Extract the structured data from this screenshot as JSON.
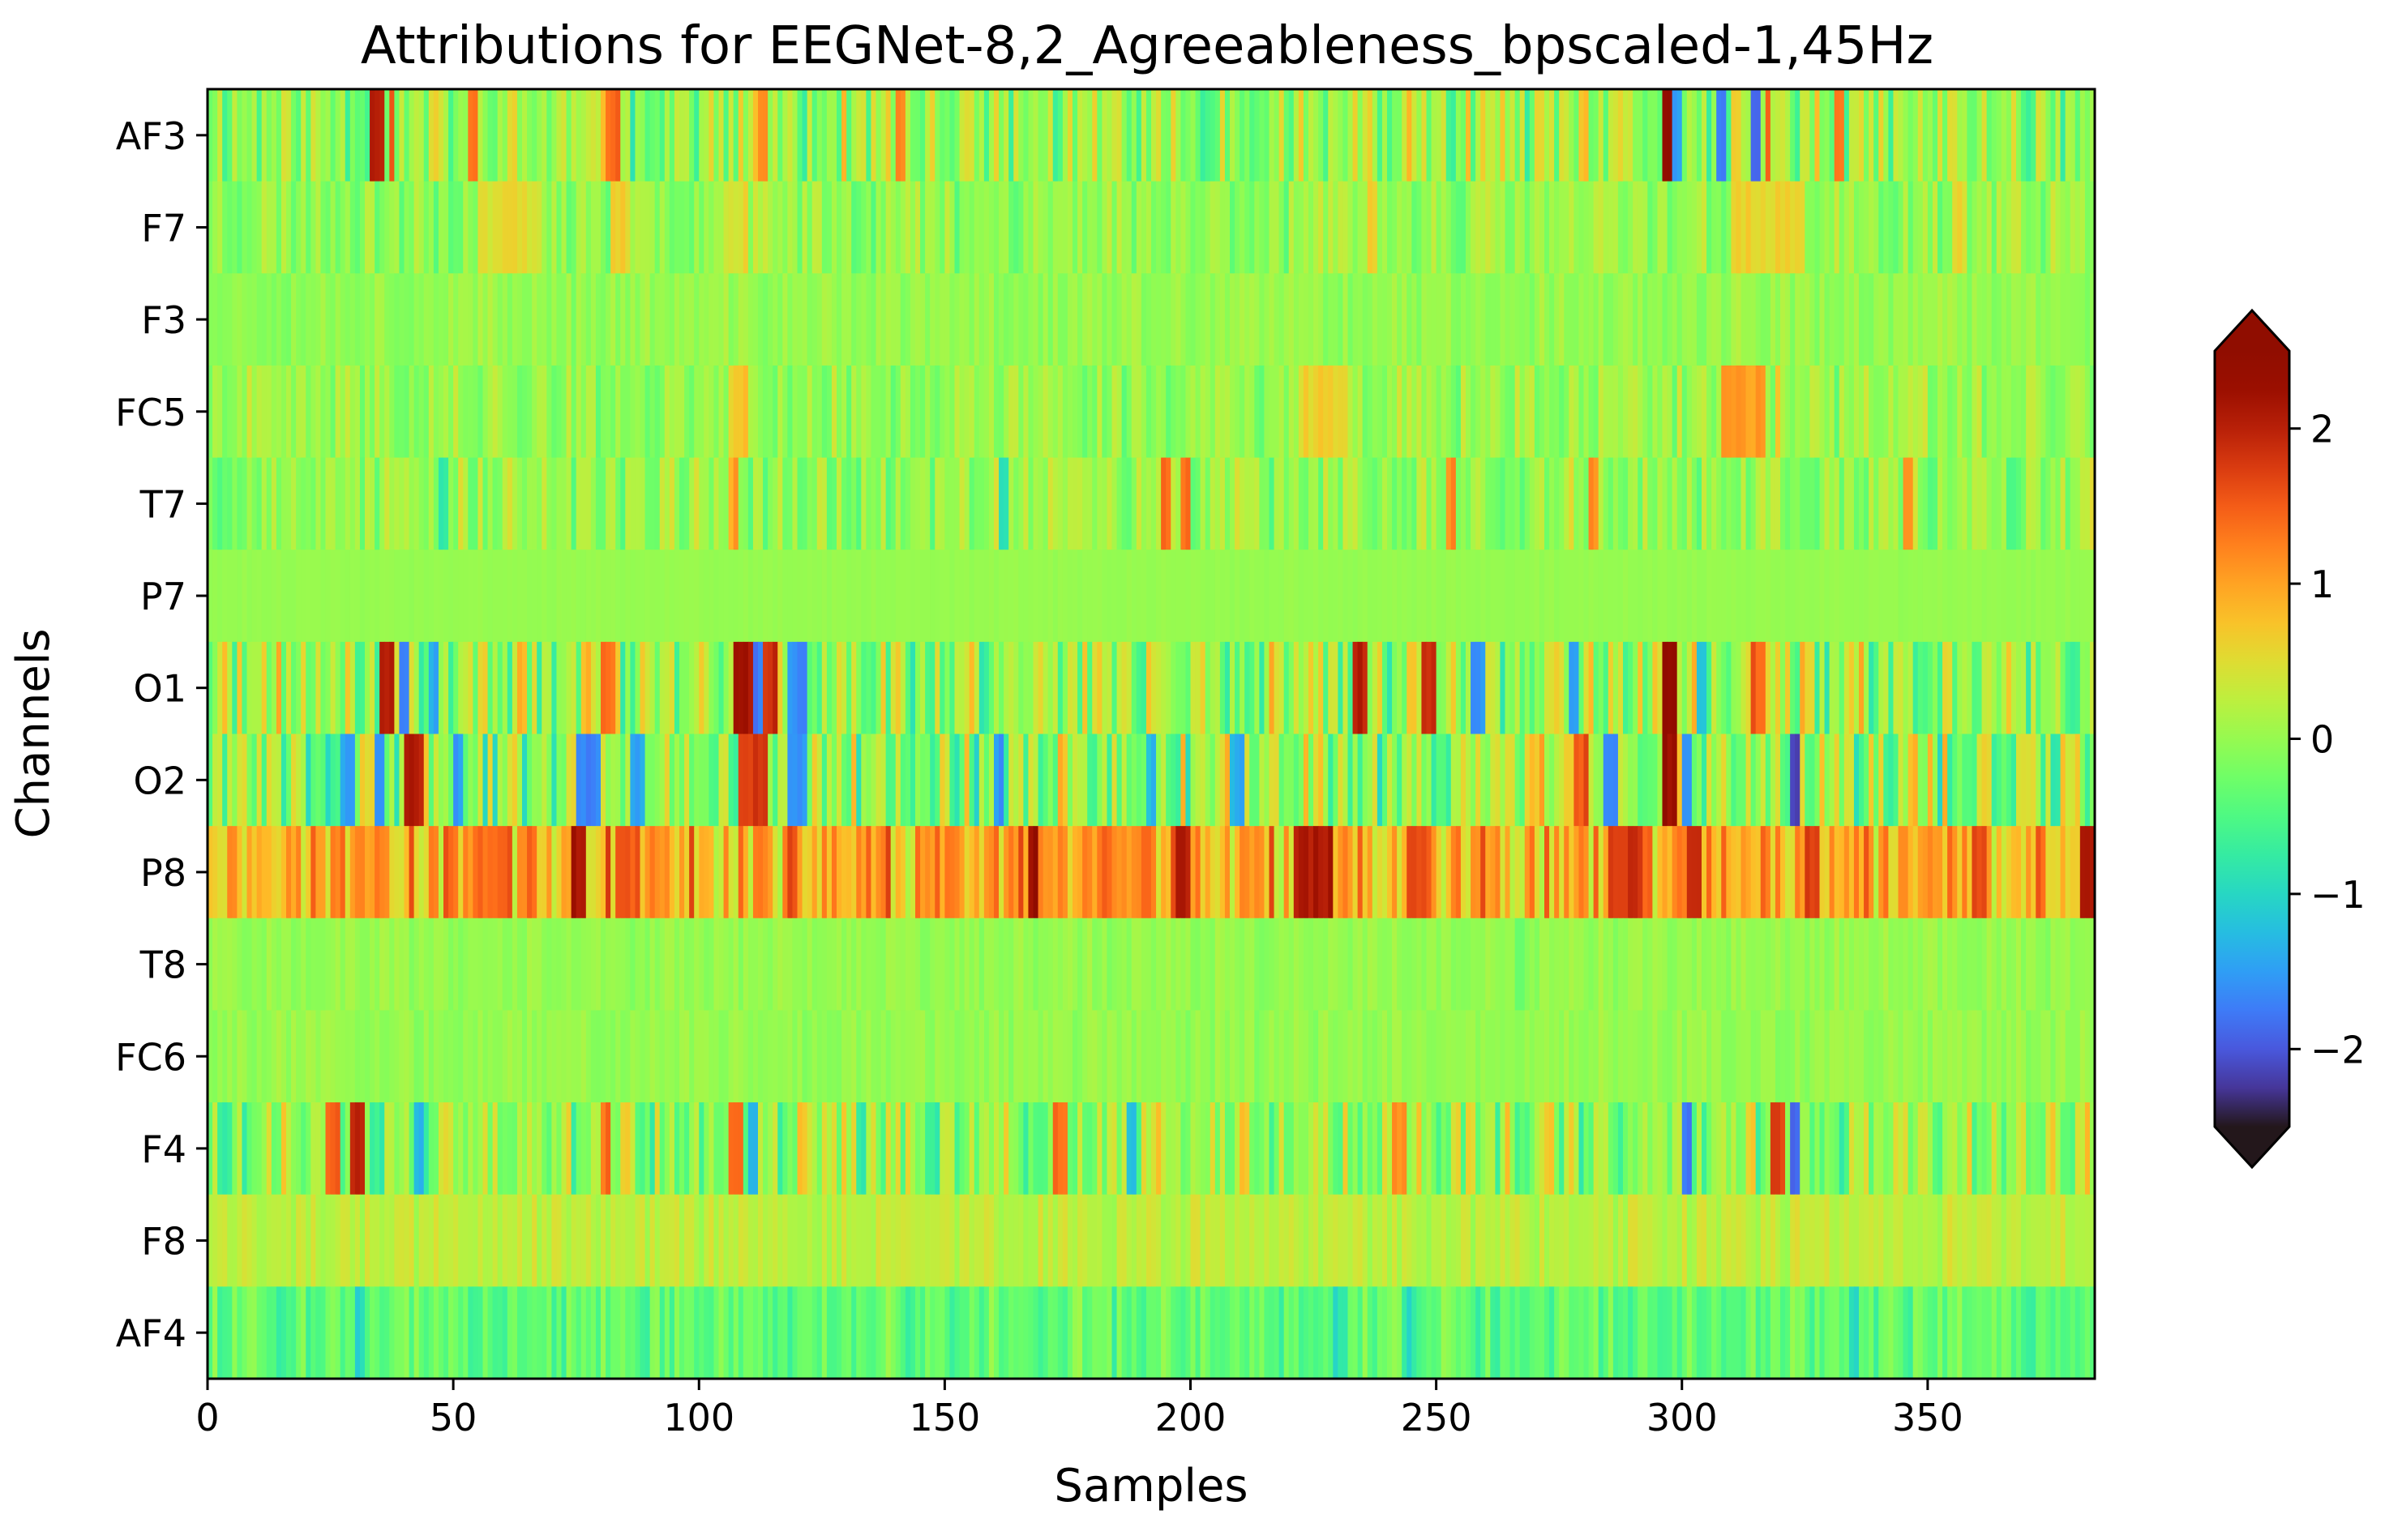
{
  "chart_data": {
    "type": "heatmap",
    "title": "Attributions for EEGNet-8,2_Agreeableness_bpscaled-1,45Hz",
    "xlabel": "Samples",
    "ylabel": "Channels",
    "xlim": [
      0,
      384
    ],
    "x_ticks": [
      "0",
      "50",
      "100",
      "150",
      "200",
      "250",
      "300",
      "350"
    ],
    "x_tick_values": [
      0,
      50,
      100,
      150,
      200,
      250,
      300,
      350
    ],
    "channels": [
      "AF3",
      "F7",
      "F3",
      "FC5",
      "T7",
      "P7",
      "O1",
      "O2",
      "P8",
      "T8",
      "FC6",
      "F4",
      "F8",
      "AF4"
    ],
    "colorbar": {
      "colormap": "turbo",
      "range": [
        -2.5,
        2.5
      ],
      "extend": "both",
      "ticks": [
        2,
        1,
        0,
        -1,
        -2
      ],
      "tick_labels": [
        "2",
        "1",
        "0",
        "−1",
        "−2"
      ]
    },
    "grid": false,
    "rows": [
      {
        "channel": "AF3",
        "amplitude": 0.9,
        "seed": 11,
        "hot": [
          [
            33,
            36,
            2.0
          ],
          [
            37,
            38,
            1.7
          ],
          [
            53,
            55,
            1.3
          ],
          [
            81,
            84,
            1.4
          ],
          [
            112,
            114,
            1.2
          ],
          [
            140,
            142,
            1.1
          ],
          [
            296,
            298,
            2.3
          ],
          [
            298,
            300,
            -1.6
          ],
          [
            307,
            309,
            -1.8
          ],
          [
            314,
            316,
            -2.0
          ],
          [
            317,
            318,
            1.6
          ],
          [
            331,
            333,
            1.2
          ]
        ]
      },
      {
        "channel": "F7",
        "amplitude": 0.5,
        "seed": 23,
        "hot": [
          [
            55,
            68,
            0.5
          ],
          [
            82,
            86,
            0.6
          ],
          [
            105,
            110,
            0.5
          ],
          [
            236,
            238,
            0.7
          ],
          [
            310,
            325,
            0.6
          ],
          [
            355,
            358,
            0.5
          ]
        ]
      },
      {
        "channel": "F3",
        "amplitude": 0.25,
        "seed": 37,
        "hot": []
      },
      {
        "channel": "FC5",
        "amplitude": 0.45,
        "seed": 41,
        "hot": [
          [
            106,
            110,
            0.7
          ],
          [
            222,
            232,
            0.6
          ],
          [
            308,
            317,
            1.0
          ],
          [
            319,
            320,
            0.8
          ]
        ]
      },
      {
        "channel": "T7",
        "amplitude": 0.6,
        "seed": 53,
        "hot": [
          [
            1,
            4,
            -0.4
          ],
          [
            47,
            49,
            -0.7
          ],
          [
            106,
            108,
            1.0
          ],
          [
            161,
            163,
            -0.8
          ],
          [
            194,
            196,
            1.4
          ],
          [
            198,
            200,
            1.3
          ],
          [
            252,
            254,
            1.2
          ],
          [
            281,
            283,
            1.1
          ],
          [
            345,
            347,
            1.0
          ]
        ]
      },
      {
        "channel": "P7",
        "amplitude": 0.05,
        "seed": 61,
        "hot": []
      },
      {
        "channel": "O1",
        "amplitude": 1.1,
        "seed": 71,
        "hot": [
          [
            35,
            38,
            2.1
          ],
          [
            39,
            41,
            -1.6
          ],
          [
            45,
            47,
            -1.4
          ],
          [
            80,
            83,
            1.3
          ],
          [
            107,
            111,
            2.2
          ],
          [
            111,
            113,
            -1.8
          ],
          [
            113,
            116,
            1.9
          ],
          [
            118,
            122,
            -1.6
          ],
          [
            233,
            236,
            2.0
          ],
          [
            247,
            250,
            1.8
          ],
          [
            257,
            260,
            -1.6
          ],
          [
            277,
            279,
            -1.5
          ],
          [
            296,
            299,
            2.4
          ],
          [
            303,
            305,
            -1.3
          ],
          [
            314,
            317,
            1.5
          ]
        ]
      },
      {
        "channel": "O2",
        "amplitude": 1.1,
        "seed": 83,
        "hot": [
          [
            27,
            30,
            -1.4
          ],
          [
            34,
            36,
            -1.6
          ],
          [
            40,
            44,
            2.0
          ],
          [
            50,
            52,
            -1.5
          ],
          [
            75,
            80,
            -1.7
          ],
          [
            86,
            89,
            -1.4
          ],
          [
            108,
            114,
            1.8
          ],
          [
            118,
            122,
            -1.5
          ],
          [
            160,
            162,
            -1.6
          ],
          [
            191,
            193,
            -1.3
          ],
          [
            208,
            211,
            -1.4
          ],
          [
            278,
            281,
            1.6
          ],
          [
            284,
            287,
            -1.7
          ],
          [
            296,
            299,
            2.3
          ],
          [
            300,
            302,
            -1.5
          ],
          [
            322,
            324,
            -2.2
          ]
        ]
      },
      {
        "channel": "P8",
        "amplitude": 0.9,
        "seed": 97,
        "offset": 0.9,
        "hot": [
          [
            31,
            34,
            1.1
          ],
          [
            56,
            61,
            1.4
          ],
          [
            74,
            77,
            2.1
          ],
          [
            83,
            88,
            1.5
          ],
          [
            167,
            169,
            2.3
          ],
          [
            197,
            200,
            2.0
          ],
          [
            221,
            229,
            2.1
          ],
          [
            244,
            249,
            1.6
          ],
          [
            285,
            292,
            1.8
          ],
          [
            301,
            304,
            2.0
          ],
          [
            325,
            328,
            1.8
          ],
          [
            360,
            362,
            1.6
          ],
          [
            381,
            384,
            2.2
          ]
        ]
      },
      {
        "channel": "T8",
        "amplitude": 0.2,
        "seed": 101,
        "hot": [
          [
            266,
            268,
            -0.3
          ]
        ]
      },
      {
        "channel": "FC6",
        "amplitude": 0.2,
        "seed": 113,
        "hot": []
      },
      {
        "channel": "F4",
        "amplitude": 0.95,
        "seed": 127,
        "hot": [
          [
            24,
            27,
            1.4
          ],
          [
            29,
            32,
            2.0
          ],
          [
            42,
            44,
            -1.3
          ],
          [
            80,
            82,
            1.4
          ],
          [
            106,
            109,
            1.5
          ],
          [
            110,
            112,
            -1.4
          ],
          [
            172,
            175,
            1.4
          ],
          [
            187,
            189,
            -1.2
          ],
          [
            241,
            244,
            1.2
          ],
          [
            300,
            302,
            -1.8
          ],
          [
            318,
            321,
            1.7
          ],
          [
            322,
            324,
            -1.9
          ]
        ]
      },
      {
        "channel": "F8",
        "amplitude": 0.3,
        "seed": 131,
        "offset": 0.25,
        "hot": [
          [
            322,
            324,
            0.5
          ]
        ]
      },
      {
        "channel": "AF4",
        "amplitude": 0.45,
        "seed": 139,
        "offset": -0.35,
        "hot": [
          [
            30,
            32,
            -1.0
          ],
          [
            88,
            90,
            -0.8
          ],
          [
            229,
            232,
            -0.9
          ],
          [
            244,
            246,
            -0.9
          ],
          [
            334,
            336,
            -0.9
          ]
        ]
      }
    ]
  }
}
